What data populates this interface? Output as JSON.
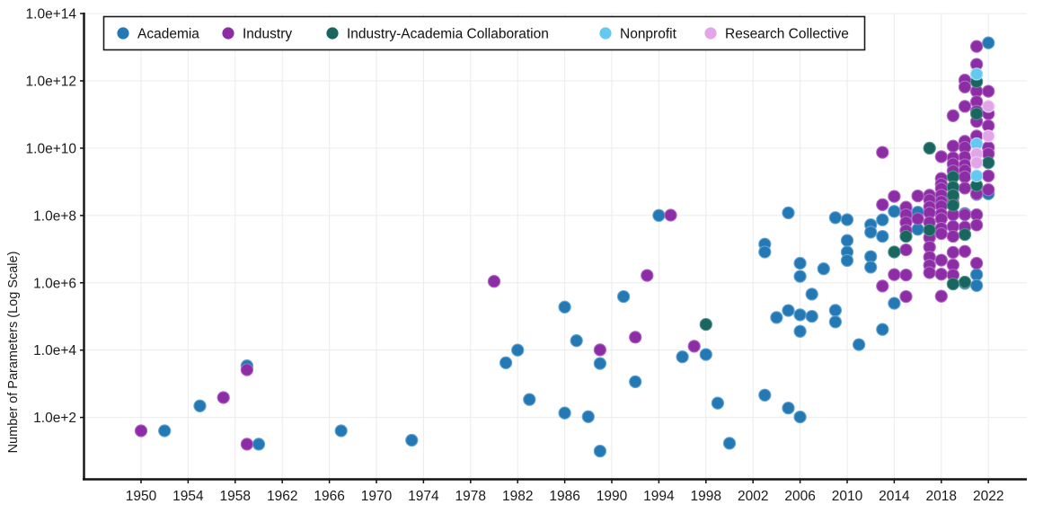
{
  "y_axis": {
    "title": "Number of Parameters (Log Scale)",
    "ticks": [
      {
        "exp": 2,
        "label": "1.0e+2"
      },
      {
        "exp": 4,
        "label": "1.0e+4"
      },
      {
        "exp": 6,
        "label": "1.0e+6"
      },
      {
        "exp": 8,
        "label": "1.0e+8"
      },
      {
        "exp": 10,
        "label": "1.0e+10"
      },
      {
        "exp": 12,
        "label": "1.0e+12"
      },
      {
        "exp": 14,
        "label": "1.0e+14"
      }
    ]
  },
  "x_axis": {
    "ticks": [
      1950,
      1954,
      1958,
      1962,
      1966,
      1970,
      1974,
      1978,
      1982,
      1986,
      1990,
      1994,
      1998,
      2002,
      2006,
      2010,
      2014,
      2018,
      2022
    ]
  },
  "legend": {
    "items": [
      {
        "key": "academia",
        "label": "Academia"
      },
      {
        "key": "industry",
        "label": "Industry"
      },
      {
        "key": "collab",
        "label": "Industry-Academia Collaboration"
      },
      {
        "key": "nonprofit",
        "label": "Nonprofit"
      },
      {
        "key": "research",
        "label": "Research Collective"
      }
    ]
  },
  "colors": {
    "grid": "#ebebeb",
    "axis": "#111111",
    "academia": {
      "fill": "#2478b4",
      "stroke": "#64a5d2"
    },
    "industry": {
      "fill": "#8c2da5",
      "stroke": "#b168c4"
    },
    "collab": {
      "fill": "#19655f",
      "stroke": "#55918b"
    },
    "nonprofit": {
      "fill": "#63c9f1",
      "stroke": "#a3dff7"
    },
    "research": {
      "fill": "#e2a6e8",
      "stroke": "#efcbf3"
    }
  },
  "chart_data": {
    "type": "scatter",
    "title": "",
    "xlabel": "",
    "ylabel": "Number of Parameters (Log Scale)",
    "x_range": [
      1945,
      2025.5
    ],
    "y_log_range": [
      0.15,
      14.0
    ],
    "grid": true,
    "legend_position": "top-left",
    "series": [
      {
        "name": "Academia",
        "key": "academia",
        "points": [
          [
            1952,
            40
          ],
          [
            1955,
            220
          ],
          [
            1959,
            3400
          ],
          [
            1960,
            16
          ],
          [
            1967,
            40
          ],
          [
            1973,
            21
          ],
          [
            1981,
            4200
          ],
          [
            1982,
            10000
          ],
          [
            1983,
            340
          ],
          [
            1986,
            190000
          ],
          [
            1986,
            135
          ],
          [
            1987,
            19000
          ],
          [
            1988,
            105
          ],
          [
            1989,
            4000
          ],
          [
            1989,
            10
          ],
          [
            1991,
            390000
          ],
          [
            1992,
            1150
          ],
          [
            1994,
            100000000.0
          ],
          [
            1996,
            6300
          ],
          [
            1998,
            7400
          ],
          [
            1999,
            265
          ],
          [
            2000,
            17
          ],
          [
            2003,
            14000000.0
          ],
          [
            2003,
            8200000.0
          ],
          [
            2003,
            460
          ],
          [
            2004,
            93000
          ],
          [
            2005,
            120000000.0
          ],
          [
            2005,
            150000
          ],
          [
            2005,
            190
          ],
          [
            2006,
            3800000.0
          ],
          [
            2006,
            1550000.0
          ],
          [
            2006,
            112000
          ],
          [
            2006,
            36000
          ],
          [
            2006,
            103
          ],
          [
            2007,
            460000
          ],
          [
            2007,
            101000
          ],
          [
            2008,
            2600000.0
          ],
          [
            2009,
            86000000.0
          ],
          [
            2009,
            152000
          ],
          [
            2009,
            69000
          ],
          [
            2010,
            75000000.0
          ],
          [
            2010,
            18000000.0
          ],
          [
            2010,
            8200000.0
          ],
          [
            2010,
            4600000.0
          ],
          [
            2011,
            14500
          ],
          [
            2012,
            53000000.0
          ],
          [
            2012,
            32000000.0
          ],
          [
            2012,
            6000000.0
          ],
          [
            2012,
            2900000.0
          ],
          [
            2013,
            74000000.0
          ],
          [
            2013,
            24000000.0
          ],
          [
            2013,
            41000
          ],
          [
            2014,
            132000000.0
          ],
          [
            2014,
            245000
          ],
          [
            2016,
            125000000.0
          ],
          [
            2016,
            39000000.0
          ],
          [
            2020,
            115000000.0
          ],
          [
            2020,
            960000.0
          ],
          [
            2021,
            420000000.0
          ],
          [
            2021,
            1750000.0
          ],
          [
            2021,
            830000.0
          ],
          [
            2022,
            13500000000000.0
          ],
          [
            2022,
            440000000.0
          ]
        ]
      },
      {
        "name": "Industry",
        "key": "industry",
        "points": [
          [
            1950,
            40
          ],
          [
            1957,
            390
          ],
          [
            1959,
            2600
          ],
          [
            1959,
            16
          ],
          [
            1980,
            1100000.0
          ],
          [
            1989,
            10200
          ],
          [
            1992,
            24000
          ],
          [
            1993,
            1650000.0
          ],
          [
            1995,
            102000000.0
          ],
          [
            1997,
            13000
          ],
          [
            2013,
            7500000000.0
          ],
          [
            2013,
            210000000.0
          ],
          [
            2013,
            800000.0
          ],
          [
            2014,
            370000000.0
          ],
          [
            2014,
            1750000.0
          ],
          [
            2015,
            175000000.0
          ],
          [
            2015,
            105000000.0
          ],
          [
            2015,
            62000000.0
          ],
          [
            2015,
            36000000.0
          ],
          [
            2015,
            9500000.0
          ],
          [
            2015,
            1700000.0
          ],
          [
            2015,
            390000.0
          ],
          [
            2016,
            380000000.0
          ],
          [
            2016,
            80000000.0
          ],
          [
            2017,
            400000000.0
          ],
          [
            2017,
            290000000.0
          ],
          [
            2017,
            180000000.0
          ],
          [
            2017,
            120000000.0
          ],
          [
            2017,
            62000000.0
          ],
          [
            2017,
            36000000.0
          ],
          [
            2017,
            22000000.0
          ],
          [
            2017,
            11500000.0
          ],
          [
            2017,
            5800000.0
          ],
          [
            2017,
            3300000.0
          ],
          [
            2017,
            2000000.0
          ],
          [
            2018,
            5600000000.0
          ],
          [
            2018,
            1250000000.0
          ],
          [
            2018,
            850000000.0
          ],
          [
            2018,
            630000000.0
          ],
          [
            2018,
            400000000.0
          ],
          [
            2018,
            260000000.0
          ],
          [
            2018,
            190000000.0
          ],
          [
            2018,
            110000000.0
          ],
          [
            2018,
            80000000.0
          ],
          [
            2018,
            42000000.0
          ],
          [
            2018,
            29000000.0
          ],
          [
            2018,
            4700000.0
          ],
          [
            2018,
            1800000.0
          ],
          [
            2018,
            400000.0
          ],
          [
            2019,
            92000000000.0
          ],
          [
            2019,
            11500000000.0
          ],
          [
            2019,
            5200000000.0
          ],
          [
            2019,
            3400000000.0
          ],
          [
            2019,
            2100000000.0
          ],
          [
            2019,
            650000000.0
          ],
          [
            2019,
            350000000.0
          ],
          [
            2019,
            230000000.0
          ],
          [
            2019,
            105000000.0
          ],
          [
            2019,
            47000000.0
          ],
          [
            2019,
            24000000.0
          ],
          [
            2019,
            8000000.0
          ],
          [
            2019,
            3400000.0
          ],
          [
            2019,
            1700000.0
          ],
          [
            2020,
            1050000000000.0
          ],
          [
            2020,
            660000000000.0
          ],
          [
            2020,
            175000000000.0
          ],
          [
            2020,
            16000000000.0
          ],
          [
            2020,
            10500000000.0
          ],
          [
            2020,
            5500000000.0
          ],
          [
            2020,
            3200000000.0
          ],
          [
            2020,
            2200000000.0
          ],
          [
            2020,
            1400000000.0
          ],
          [
            2020,
            650000000.0
          ],
          [
            2020,
            105000000.0
          ],
          [
            2020,
            45000000.0
          ],
          [
            2020,
            8600000.0
          ],
          [
            2021,
            10500000000000.0
          ],
          [
            2021,
            3100000000000.0
          ],
          [
            2021,
            490000000000.0
          ],
          [
            2021,
            240000000000.0
          ],
          [
            2021,
            125000000000.0
          ],
          [
            2021,
            62000000000.0
          ],
          [
            2021,
            23000000000.0
          ],
          [
            2021,
            440000000.0
          ],
          [
            2021,
            105000000.0
          ],
          [
            2021,
            52000000.0
          ],
          [
            2021,
            3800000.0
          ],
          [
            2022,
            490000000000.0
          ],
          [
            2022,
            105000000000.0
          ],
          [
            2022,
            46000000000.0
          ],
          [
            2022,
            10500000000.0
          ],
          [
            2022,
            6800000000.0
          ],
          [
            2022,
            1500000000.0
          ],
          [
            2022,
            580000000.0
          ]
        ]
      },
      {
        "name": "Industry-Academia Collaboration",
        "key": "collab",
        "points": [
          [
            1998,
            58000
          ],
          [
            2014,
            8200000.0
          ],
          [
            2015,
            24000000.0
          ],
          [
            2017,
            10000000000.0
          ],
          [
            2017,
            37000000.0
          ],
          [
            2019,
            1400000000.0
          ],
          [
            2019,
            700000000.0
          ],
          [
            2019,
            400000000.0
          ],
          [
            2019,
            200000000.0
          ],
          [
            2019,
            920000.0
          ],
          [
            2020,
            27000000.0
          ],
          [
            2020,
            1050000.0
          ],
          [
            2021,
            940000000000.0
          ],
          [
            2021,
            105000000000.0
          ],
          [
            2021,
            780000000.0
          ],
          [
            2022,
            3700000000.0
          ]
        ]
      },
      {
        "name": "Nonprofit",
        "key": "nonprofit",
        "points": [
          [
            2021,
            1600000000000.0
          ],
          [
            2021,
            13500000000.0
          ],
          [
            2021,
            1500000000.0
          ]
        ]
      },
      {
        "name": "Research Collective",
        "key": "research",
        "points": [
          [
            2021,
            6800000000.0
          ],
          [
            2021,
            3700000000.0
          ],
          [
            2022,
            175000000000.0
          ],
          [
            2022,
            23000000000.0
          ]
        ]
      }
    ]
  }
}
